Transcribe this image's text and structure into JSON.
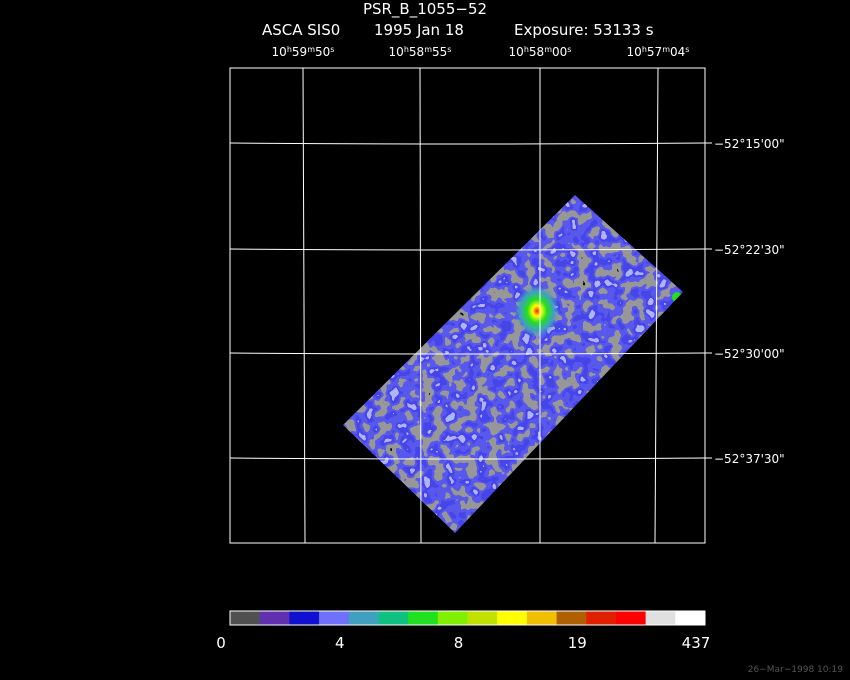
{
  "title": "PSR_B_1055−52",
  "subtitle": {
    "instrument": "ASCA SIS0",
    "date": "1995 Jan 18",
    "exposure": "Exposure: 53133 s"
  },
  "ra_axis": {
    "units": [
      "h",
      "m",
      "s"
    ],
    "labels": [
      {
        "hours": "10",
        "minutes": "59",
        "seconds": "50"
      },
      {
        "hours": "10",
        "minutes": "58",
        "seconds": "55"
      },
      {
        "hours": "10",
        "minutes": "58",
        "seconds": "00"
      },
      {
        "hours": "10",
        "minutes": "57",
        "seconds": "04"
      }
    ]
  },
  "dec_axis": {
    "labels": [
      "−52°15'00\"",
      "−52°22'30\"",
      "−52°30'00\"",
      "−52°37'30\""
    ]
  },
  "colorbar": {
    "colors": [
      "#505050",
      "#6030b0",
      "#1010d0",
      "#7070ff",
      "#40a0c0",
      "#10c080",
      "#20e020",
      "#80f000",
      "#c0e000",
      "#ffff00",
      "#f0c000",
      "#b06000",
      "#e02000",
      "#ff0000",
      "#e0e0e0",
      "#ffffff"
    ],
    "labels": [
      "0",
      "4",
      "8",
      "19",
      "437"
    ]
  },
  "footer": "26−Mar−1998 10:19"
}
